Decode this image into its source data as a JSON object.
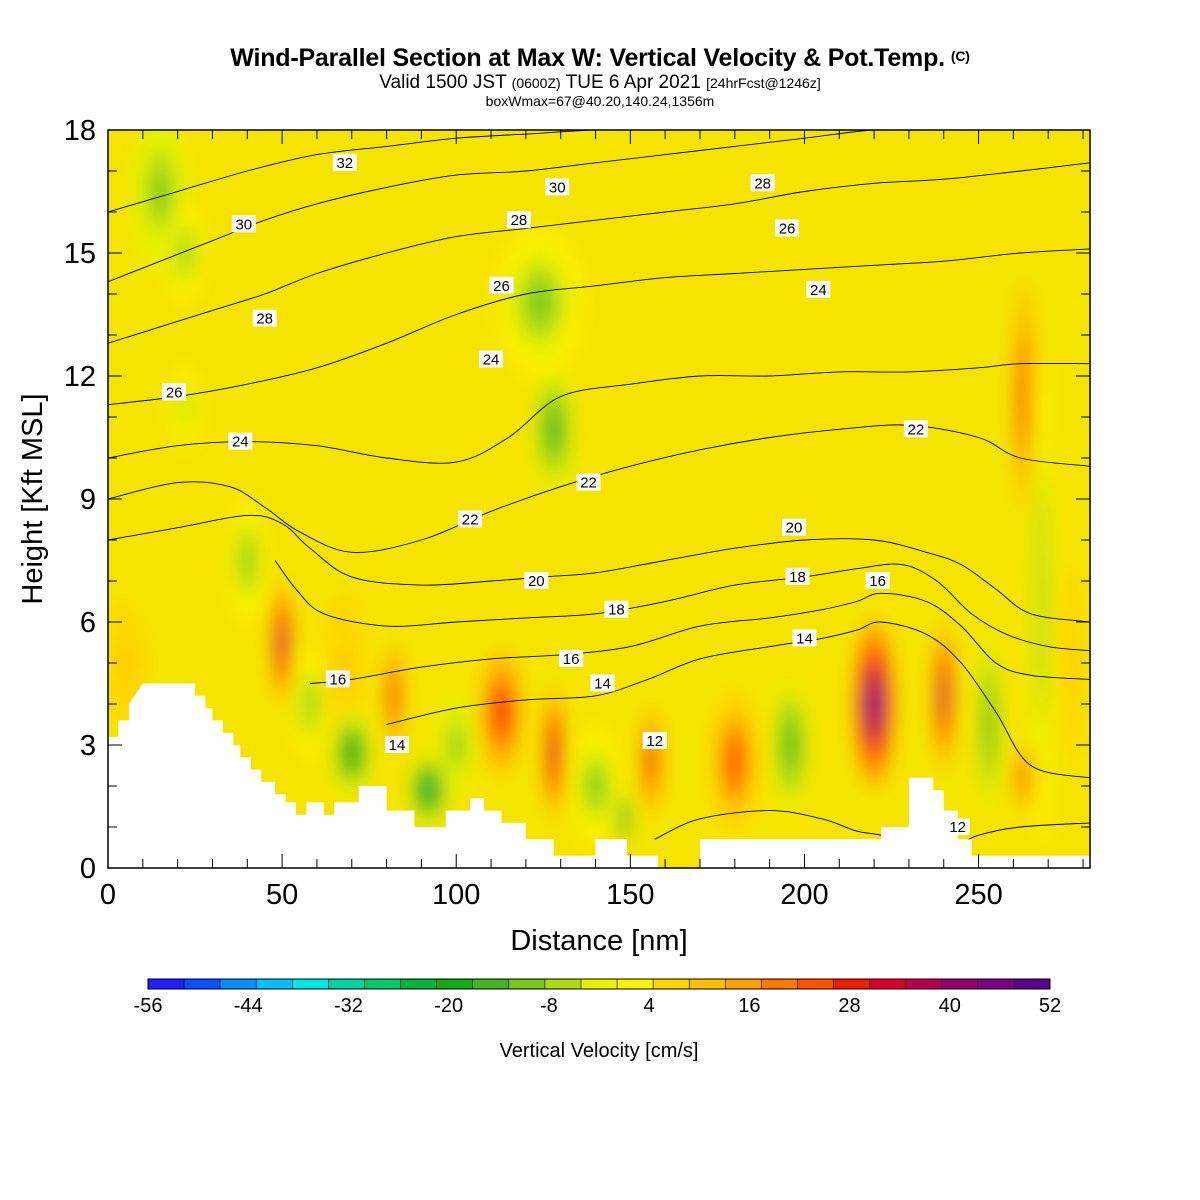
{
  "header": {
    "title": "Wind-Parallel Section at Max W: Vertical Velocity & Pot.Temp.",
    "copyright": "(C)",
    "valid_prefix": "Valid 1500 JST",
    "valid_utc": "(0600Z)",
    "valid_date": "TUE 6 Apr 2021",
    "forecast": "[24hrFcst@1246z]",
    "box_info": "boxWmax=67@40.20,140.24,1356m"
  },
  "chart_data": {
    "type": "heatmap",
    "xlabel": "Distance [nm]",
    "ylabel": "Height [Kft MSL]",
    "xlim": [
      0,
      282
    ],
    "ylim": [
      0,
      18
    ],
    "x_ticks": [
      "0",
      "50",
      "100",
      "150",
      "200",
      "250"
    ],
    "x_tick_values": [
      0,
      50,
      100,
      150,
      200,
      250
    ],
    "y_ticks": [
      "0",
      "3",
      "6",
      "9",
      "12",
      "15",
      "18"
    ],
    "y_tick_values": [
      0,
      3,
      6,
      9,
      12,
      15,
      18
    ],
    "background_color": "#f5e400",
    "colorbar": {
      "label": "Vertical Velocity [cm/s]",
      "tick_labels": [
        "-56",
        "-44",
        "-32",
        "-20",
        "-8",
        "4",
        "16",
        "28",
        "40",
        "52"
      ],
      "colors": [
        "#1f1fff",
        "#0a50ff",
        "#0a8cff",
        "#00bfff",
        "#00e6e6",
        "#00d3a0",
        "#00c864",
        "#00b43c",
        "#14aa14",
        "#46b41e",
        "#78c81e",
        "#aadc14",
        "#e6f000",
        "#fff000",
        "#ffd700",
        "#ffbe00",
        "#ffa000",
        "#ff7800",
        "#ff5000",
        "#f01e00",
        "#dc0028",
        "#b40050",
        "#96006e",
        "#7d0082",
        "#5a008c"
      ]
    },
    "terrain_profile": {
      "x": [
        0,
        3,
        3,
        6,
        6,
        10,
        25,
        25,
        28,
        28,
        30,
        30,
        33,
        33,
        36,
        36,
        38,
        38,
        41,
        41,
        44,
        44,
        48,
        48,
        51,
        51,
        54,
        54,
        57,
        57,
        62,
        62,
        65,
        65,
        72,
        72,
        80,
        80,
        88,
        88,
        97,
        97,
        104,
        104,
        108,
        108,
        113,
        113,
        120,
        120,
        128,
        128,
        130,
        130,
        140,
        140,
        149,
        149,
        158,
        158,
        170,
        170,
        195,
        195,
        222,
        222,
        230,
        230,
        237,
        237,
        240,
        240,
        244,
        244,
        248,
        248,
        255,
        282
      ],
      "y": [
        3.2,
        3.2,
        3.6,
        3.6,
        4.0,
        4.5,
        4.5,
        4.2,
        4.2,
        3.9,
        3.9,
        3.6,
        3.6,
        3.3,
        3.3,
        3.0,
        3.0,
        2.7,
        2.7,
        2.4,
        2.4,
        2.1,
        2.1,
        1.8,
        1.8,
        1.6,
        1.6,
        1.3,
        1.3,
        1.6,
        1.6,
        1.3,
        1.3,
        1.6,
        1.6,
        2.0,
        2.0,
        1.4,
        1.4,
        1.0,
        1.0,
        1.4,
        1.4,
        1.7,
        1.7,
        1.4,
        1.4,
        1.1,
        1.1,
        0.7,
        0.7,
        0.3,
        0.3,
        0.3,
        0.3,
        0.7,
        0.7,
        0.3,
        0.3,
        0.0,
        0.0,
        0.7,
        0.7,
        0.7,
        0.7,
        1.0,
        1.0,
        2.2,
        2.2,
        1.9,
        1.9,
        1.4,
        1.4,
        0.7,
        0.7,
        0.3,
        0.3,
        0.3
      ]
    },
    "vertical_velocity_cells": [
      {
        "x": 5,
        "z": 5.0,
        "rx": 6,
        "rz": 1.5,
        "w": 10
      },
      {
        "x": 15,
        "z": 16.5,
        "rx": 8,
        "rz": 2.0,
        "w": -12
      },
      {
        "x": 22,
        "z": 15.0,
        "rx": 5,
        "rz": 1.2,
        "w": -8
      },
      {
        "x": 22,
        "z": 11.2,
        "rx": 4,
        "rz": 1.0,
        "w": -6
      },
      {
        "x": 40,
        "z": 7.5,
        "rx": 5,
        "rz": 1.5,
        "w": -10
      },
      {
        "x": 50,
        "z": 5.5,
        "rx": 3,
        "rz": 1.5,
        "w": 36
      },
      {
        "x": 58,
        "z": 4.0,
        "rx": 5,
        "rz": 1.3,
        "w": -8
      },
      {
        "x": 68,
        "z": 4.8,
        "rx": 6,
        "rz": 2.0,
        "w": 10
      },
      {
        "x": 70,
        "z": 2.8,
        "rx": 6,
        "rz": 1.1,
        "w": -20
      },
      {
        "x": 82,
        "z": 4.2,
        "rx": 2.5,
        "rz": 1.3,
        "w": 28
      },
      {
        "x": 92,
        "z": 1.9,
        "rx": 6,
        "rz": 0.9,
        "w": -22
      },
      {
        "x": 100,
        "z": 3.0,
        "rx": 5,
        "rz": 1.3,
        "w": -12
      },
      {
        "x": 113,
        "z": 3.8,
        "rx": 6,
        "rz": 1.5,
        "w": 30
      },
      {
        "x": 124,
        "z": 13.8,
        "rx": 12,
        "rz": 1.8,
        "w": -10
      },
      {
        "x": 128,
        "z": 10.7,
        "rx": 6,
        "rz": 1.5,
        "w": -16
      },
      {
        "x": 128,
        "z": 2.8,
        "rx": 3,
        "rz": 1.6,
        "w": 34
      },
      {
        "x": 140,
        "z": 2.0,
        "rx": 7,
        "rz": 1.4,
        "w": -10
      },
      {
        "x": 148,
        "z": 1.2,
        "rx": 2,
        "rz": 0.8,
        "w": -22
      },
      {
        "x": 156,
        "z": 2.6,
        "rx": 3,
        "rz": 1.3,
        "w": 30
      },
      {
        "x": 180,
        "z": 2.6,
        "rx": 7,
        "rz": 1.8,
        "w": 22
      },
      {
        "x": 196,
        "z": 3.0,
        "rx": 5,
        "rz": 1.6,
        "w": -14
      },
      {
        "x": 220,
        "z": 4.0,
        "rx": 6,
        "rz": 2.0,
        "w": 46
      },
      {
        "x": 240,
        "z": 4.2,
        "rx": 3,
        "rz": 1.8,
        "w": 36
      },
      {
        "x": 253,
        "z": 3.5,
        "rx": 3,
        "rz": 2.2,
        "w": -14
      },
      {
        "x": 263,
        "z": 11.5,
        "rx": 2.5,
        "rz": 2.8,
        "w": 30
      },
      {
        "x": 263,
        "z": 2.2,
        "rx": 2.5,
        "rz": 0.8,
        "w": 26
      },
      {
        "x": 268,
        "z": 6.5,
        "rx": 3,
        "rz": 6,
        "w": -8
      },
      {
        "x": 277,
        "z": 5.0,
        "rx": 3,
        "rz": 2.5,
        "w": 10
      }
    ],
    "theta_contours": [
      {
        "level": 12,
        "label": "12",
        "x": [
          157,
          170,
          190,
          205,
          215,
          222,
          234,
          242,
          250,
          262,
          282
        ],
        "y": [
          0.7,
          1.2,
          1.4,
          1.2,
          0.9,
          0.8,
          0.5,
          0.5,
          0.8,
          1.0,
          1.1
        ],
        "label_x": 244,
        "label_y": 1.0
      },
      {
        "level": 14,
        "label": "14",
        "x": [
          80,
          100,
          120,
          140,
          155,
          170,
          190,
          205,
          215,
          222,
          235,
          245,
          255,
          265,
          282
        ],
        "y": [
          3.5,
          3.9,
          4.1,
          4.2,
          4.6,
          5.1,
          5.4,
          5.6,
          5.8,
          6.0,
          5.7,
          5.0,
          3.8,
          2.5,
          2.2
        ],
        "label_x": 200,
        "label_y": 5.6
      },
      {
        "level": 16,
        "label": "16",
        "x": [
          58,
          70,
          90,
          110,
          130,
          150,
          170,
          190,
          205,
          215,
          222,
          235,
          245,
          255,
          265,
          282
        ],
        "y": [
          4.5,
          4.6,
          4.9,
          5.1,
          5.2,
          5.4,
          5.9,
          6.1,
          6.3,
          6.5,
          6.7,
          6.5,
          5.9,
          5.0,
          4.7,
          4.6
        ],
        "label_x": 66,
        "label_y": 4.6
      },
      {
        "level": 18,
        "label": "18",
        "x": [
          48,
          54,
          62,
          80,
          100,
          120,
          140,
          160,
          180,
          200,
          215,
          228,
          238,
          248,
          258,
          270,
          282
        ],
        "y": [
          7.5,
          6.8,
          6.2,
          5.9,
          6.0,
          6.1,
          6.2,
          6.5,
          6.9,
          7.1,
          7.3,
          7.4,
          7.0,
          6.2,
          5.7,
          5.4,
          5.3
        ],
        "label_x": 146,
        "label_y": 6.3
      },
      {
        "level": 20,
        "label": "20",
        "x": [
          0,
          20,
          40,
          50,
          58,
          70,
          90,
          110,
          125,
          140,
          160,
          180,
          200,
          220,
          235,
          245,
          255,
          265,
          282
        ],
        "y": [
          8.0,
          8.3,
          8.6,
          8.4,
          7.8,
          7.1,
          6.9,
          7.0,
          7.1,
          7.2,
          7.5,
          7.8,
          8.0,
          8.0,
          7.7,
          7.4,
          6.8,
          6.2,
          6.0
        ],
        "label_x": 123,
        "label_y": 7.0
      },
      {
        "level": 22,
        "label": "22",
        "x": [
          0,
          20,
          35,
          45,
          55,
          70,
          90,
          110,
          130,
          150,
          170,
          190,
          210,
          230,
          250,
          262,
          282
        ],
        "y": [
          9.0,
          9.4,
          9.3,
          8.8,
          8.2,
          7.7,
          8.0,
          8.7,
          9.3,
          9.8,
          10.2,
          10.5,
          10.7,
          10.8,
          10.5,
          10.0,
          9.8
        ],
        "label_x": 232,
        "label_y": 10.7
      },
      {
        "level": 24,
        "label": "24",
        "x": [
          0,
          20,
          40,
          60,
          80,
          100,
          115,
          130,
          150,
          170,
          190,
          210,
          230,
          250,
          262,
          282
        ],
        "y": [
          10.0,
          10.3,
          10.4,
          10.3,
          10.0,
          9.9,
          10.5,
          11.5,
          11.8,
          12.0,
          12.0,
          12.1,
          12.1,
          12.2,
          12.3,
          12.3
        ],
        "label_x": 38,
        "label_y": 10.4
      },
      {
        "level": 26,
        "label": "26",
        "x": [
          0,
          20,
          40,
          60,
          80,
          100,
          120,
          140,
          160,
          180,
          200,
          220,
          240,
          262,
          282
        ],
        "y": [
          11.3,
          11.5,
          11.8,
          12.2,
          12.8,
          13.5,
          14.0,
          14.2,
          14.4,
          14.5,
          14.6,
          14.7,
          14.8,
          15.0,
          15.1
        ],
        "label_x": 19,
        "label_y": 11.6
      },
      {
        "level": 28,
        "label": "28",
        "x": [
          0,
          15,
          30,
          45,
          60,
          80,
          100,
          120,
          140,
          160,
          180,
          200,
          220,
          240,
          262,
          282
        ],
        "y": [
          12.8,
          13.2,
          13.6,
          14.0,
          14.5,
          15.0,
          15.4,
          15.6,
          15.8,
          16.0,
          16.2,
          16.5,
          16.7,
          16.8,
          17.0,
          17.2
        ],
        "label_x": 45,
        "label_y": 13.4
      },
      {
        "level": 30,
        "label": "30",
        "x": [
          0,
          15,
          30,
          45,
          60,
          80,
          100,
          120,
          140,
          160,
          180,
          200,
          220,
          240,
          262,
          282
        ],
        "y": [
          14.3,
          14.8,
          15.3,
          15.8,
          16.2,
          16.6,
          16.9,
          17.0,
          17.2,
          17.4,
          17.6,
          17.8,
          18.0,
          18.0,
          18.0,
          18.0
        ],
        "label_x": 39,
        "label_y": 15.7
      },
      {
        "level": 32,
        "label": "32",
        "x": [
          0,
          20,
          40,
          60,
          80,
          100,
          120,
          140,
          160,
          180,
          200
        ],
        "y": [
          16.0,
          16.5,
          17.0,
          17.4,
          17.6,
          17.8,
          17.9,
          18.0,
          18.0,
          18.0,
          18.0
        ],
        "label_x": 68,
        "label_y": 17.2
      }
    ],
    "extra_contour_labels": [
      {
        "text": "30",
        "x": 129,
        "y": 16.6
      },
      {
        "text": "28",
        "x": 118,
        "y": 15.8
      },
      {
        "text": "26",
        "x": 113,
        "y": 14.2
      },
      {
        "text": "24",
        "x": 110,
        "y": 12.4
      },
      {
        "text": "22",
        "x": 138,
        "y": 9.4
      },
      {
        "text": "22",
        "x": 104,
        "y": 8.5
      },
      {
        "text": "20",
        "x": 197,
        "y": 8.3
      },
      {
        "text": "18",
        "x": 198,
        "y": 7.1
      },
      {
        "text": "16",
        "x": 133,
        "y": 5.1
      },
      {
        "text": "16",
        "x": 221,
        "y": 7.0
      },
      {
        "text": "14",
        "x": 83,
        "y": 3.0
      },
      {
        "text": "14",
        "x": 142,
        "y": 4.5
      },
      {
        "text": "12",
        "x": 157,
        "y": 3.1
      },
      {
        "text": "28",
        "x": 188,
        "y": 16.7
      },
      {
        "text": "26",
        "x": 195,
        "y": 15.6
      },
      {
        "text": "24",
        "x": 204,
        "y": 14.1
      },
      {
        "text": "12",
        "x": 244,
        "y": 1.0
      }
    ]
  }
}
